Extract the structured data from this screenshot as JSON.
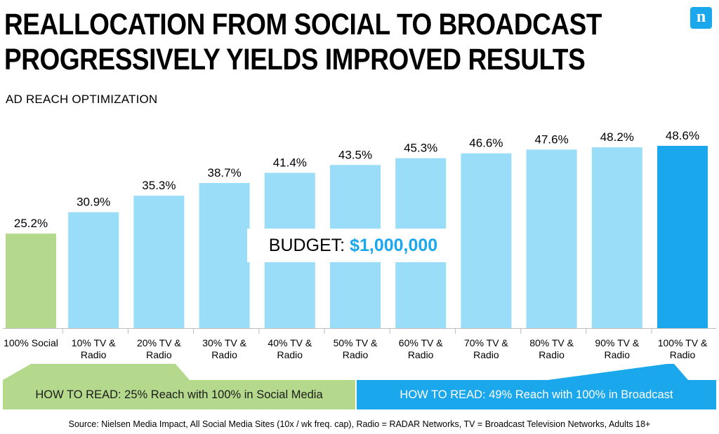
{
  "header": {
    "title_line1": "REALLOCATION FROM SOCIAL TO BROADCAST",
    "title_line2": "PROGRESSIVELY YIELDS IMPROVED RESULTS",
    "subtitle": "AD REACH OPTIMIZATION",
    "logo_text": "n"
  },
  "budget": {
    "label": "BUDGET:",
    "amount": "$1,000,000"
  },
  "how_to_read": {
    "left": "HOW TO READ: 25% Reach with 100% in Social Media",
    "right": "HOW TO READ: 49% Reach with 100% in Broadcast"
  },
  "source": "Source: Nielsen Media Impact, All Social Media Sites (10x / wk freq. cap), Radio = RADAR Networks, TV = Broadcast Television Networks, Adults 18+",
  "colors": {
    "social": "#b4d98c",
    "broadcast_mix": "#99ddf9",
    "full_broadcast": "#1aa7ec",
    "axis": "#bdbdbd"
  },
  "chart_data": {
    "type": "bar",
    "title": "",
    "xlabel": "",
    "ylabel": "",
    "ylim": [
      0,
      50
    ],
    "grid": false,
    "legend": "none",
    "categories": [
      [
        "100% Social"
      ],
      [
        "10% TV &",
        "Radio"
      ],
      [
        "20% TV &",
        "Radio"
      ],
      [
        "30% TV &",
        "Radio"
      ],
      [
        "40% TV &",
        "Radio"
      ],
      [
        "50% TV &",
        "Radio"
      ],
      [
        "60% TV &",
        "Radio"
      ],
      [
        "70% TV &",
        "Radio"
      ],
      [
        "80% TV &",
        "Radio"
      ],
      [
        "90% TV &",
        "Radio"
      ],
      [
        "100% TV &",
        "Radio"
      ]
    ],
    "values": [
      25.2,
      30.9,
      35.3,
      38.7,
      41.4,
      43.5,
      45.3,
      46.6,
      47.6,
      48.2,
      48.6
    ],
    "value_labels": [
      "25.2%",
      "30.9%",
      "35.3%",
      "38.7%",
      "41.4%",
      "43.5%",
      "45.3%",
      "46.6%",
      "47.6%",
      "48.2%",
      "48.6%"
    ],
    "bar_color_keys": [
      "social",
      "broadcast_mix",
      "broadcast_mix",
      "broadcast_mix",
      "broadcast_mix",
      "broadcast_mix",
      "broadcast_mix",
      "broadcast_mix",
      "broadcast_mix",
      "broadcast_mix",
      "full_broadcast"
    ]
  }
}
